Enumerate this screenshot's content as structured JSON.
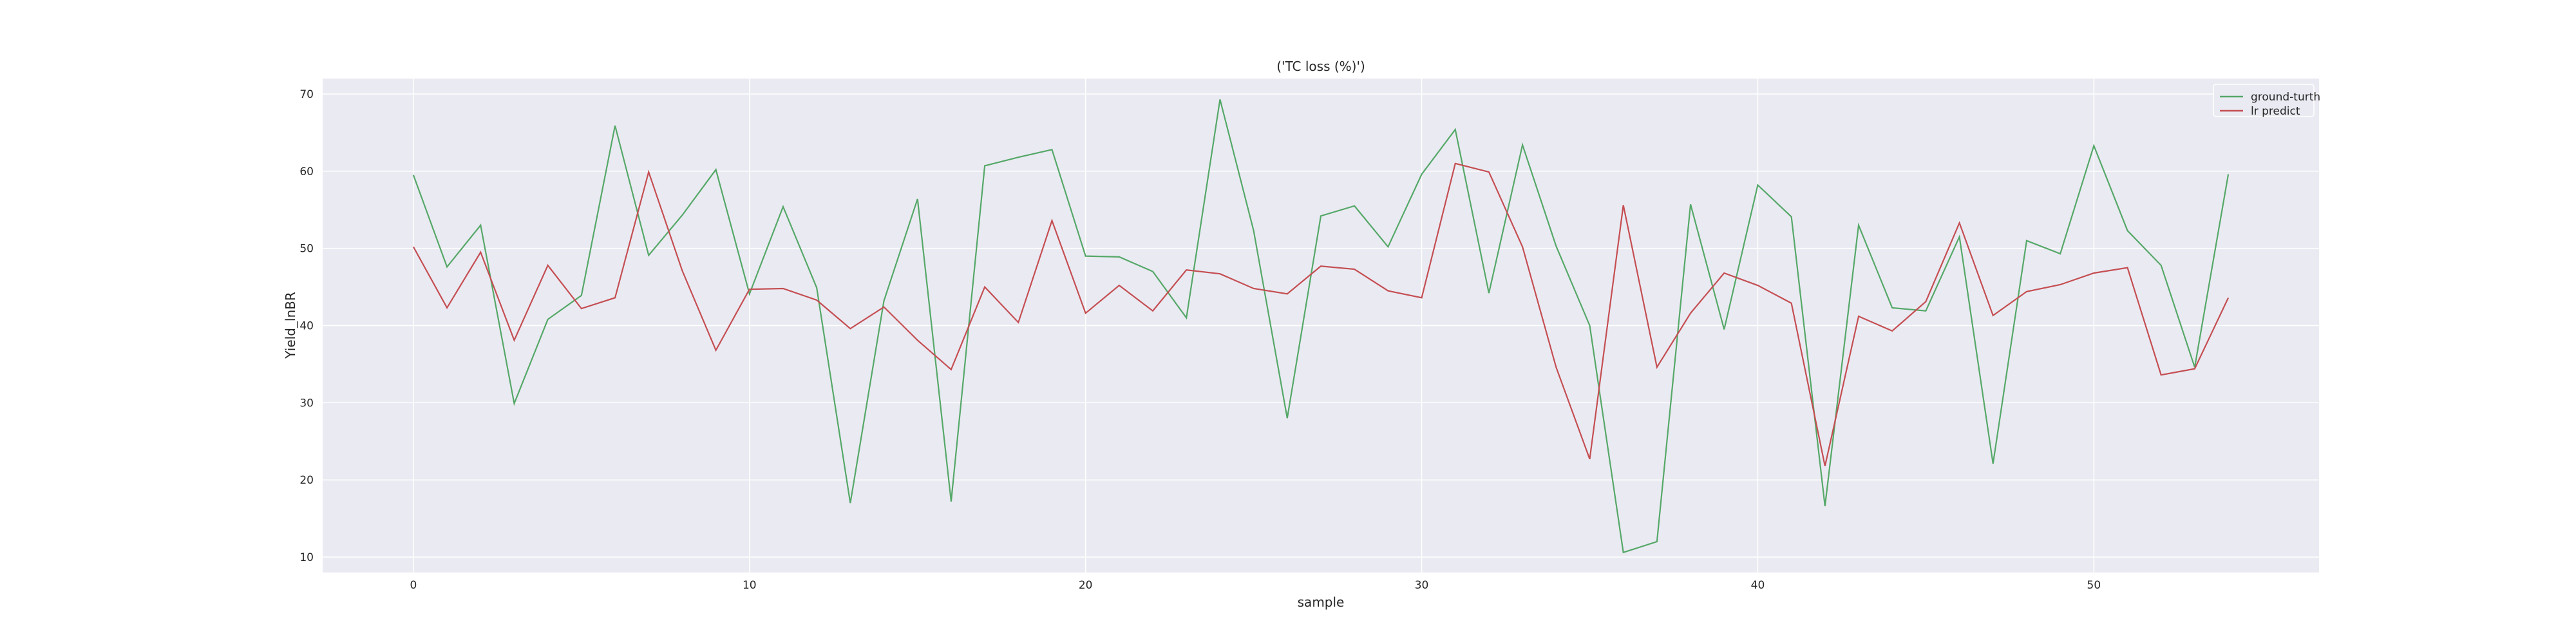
{
  "chart_data": {
    "type": "line",
    "title": "('TC loss (%)')",
    "xlabel": "sample",
    "ylabel": "Yield_lnBR",
    "xlim": [
      -2.7,
      56.7
    ],
    "ylim": [
      8,
      72
    ],
    "xticks": [
      0,
      10,
      20,
      30,
      40,
      50
    ],
    "yticks": [
      10,
      20,
      30,
      40,
      50,
      60,
      70
    ],
    "grid": true,
    "legend_position": "top-right",
    "x": [
      0,
      1,
      2,
      3,
      4,
      5,
      6,
      7,
      8,
      9,
      10,
      11,
      12,
      13,
      14,
      15,
      16,
      17,
      18,
      19,
      20,
      21,
      22,
      23,
      24,
      25,
      26,
      27,
      28,
      29,
      30,
      31,
      32,
      33,
      34,
      35,
      36,
      37,
      38,
      39,
      40,
      41,
      42,
      43,
      44,
      45,
      46,
      47,
      48,
      49,
      50,
      51,
      52,
      53,
      54
    ],
    "series": [
      {
        "name": "ground-turth",
        "color": "#55a868",
        "values": [
          59.5,
          47.6,
          53,
          29.9,
          40.8,
          43.9,
          65.9,
          49.1,
          54.3,
          60.2,
          44.1,
          55.4,
          44.9,
          17,
          43.2,
          56.4,
          17.2,
          60.7,
          61.8,
          62.8,
          49,
          48.9,
          47,
          41,
          69.3,
          52.3,
          28,
          54.2,
          55.5,
          50.2,
          59.6,
          65.4,
          44.2,
          63.4,
          50.3,
          40,
          10.6,
          12,
          55.7,
          39.5,
          58.2,
          54.1,
          16.6,
          53,
          42.3,
          41.9,
          51.5,
          22.1,
          51,
          49.3,
          63.3,
          52.3,
          47.8,
          34.6,
          59.6
        ]
      },
      {
        "name": "lr predict",
        "color": "#c44e52",
        "values": [
          50.2,
          42.3,
          49.5,
          38.1,
          47.8,
          42.2,
          43.6,
          59.9,
          47.1,
          36.8,
          44.7,
          44.8,
          43.3,
          39.6,
          42.4,
          38.1,
          34.3,
          45,
          40.4,
          53.6,
          41.6,
          45.2,
          41.9,
          47.2,
          46.7,
          44.8,
          44.1,
          47.7,
          47.3,
          44.5,
          43.6,
          61,
          59.9,
          50.2,
          34.6,
          22.7,
          55.6,
          34.6,
          41.6,
          46.8,
          45.2,
          42.9,
          21.8,
          41.2,
          39.3,
          43.1,
          53.3,
          41.3,
          44.4,
          45.3,
          46.8,
          47.5,
          33.6,
          34.4,
          43.6
        ]
      }
    ]
  }
}
